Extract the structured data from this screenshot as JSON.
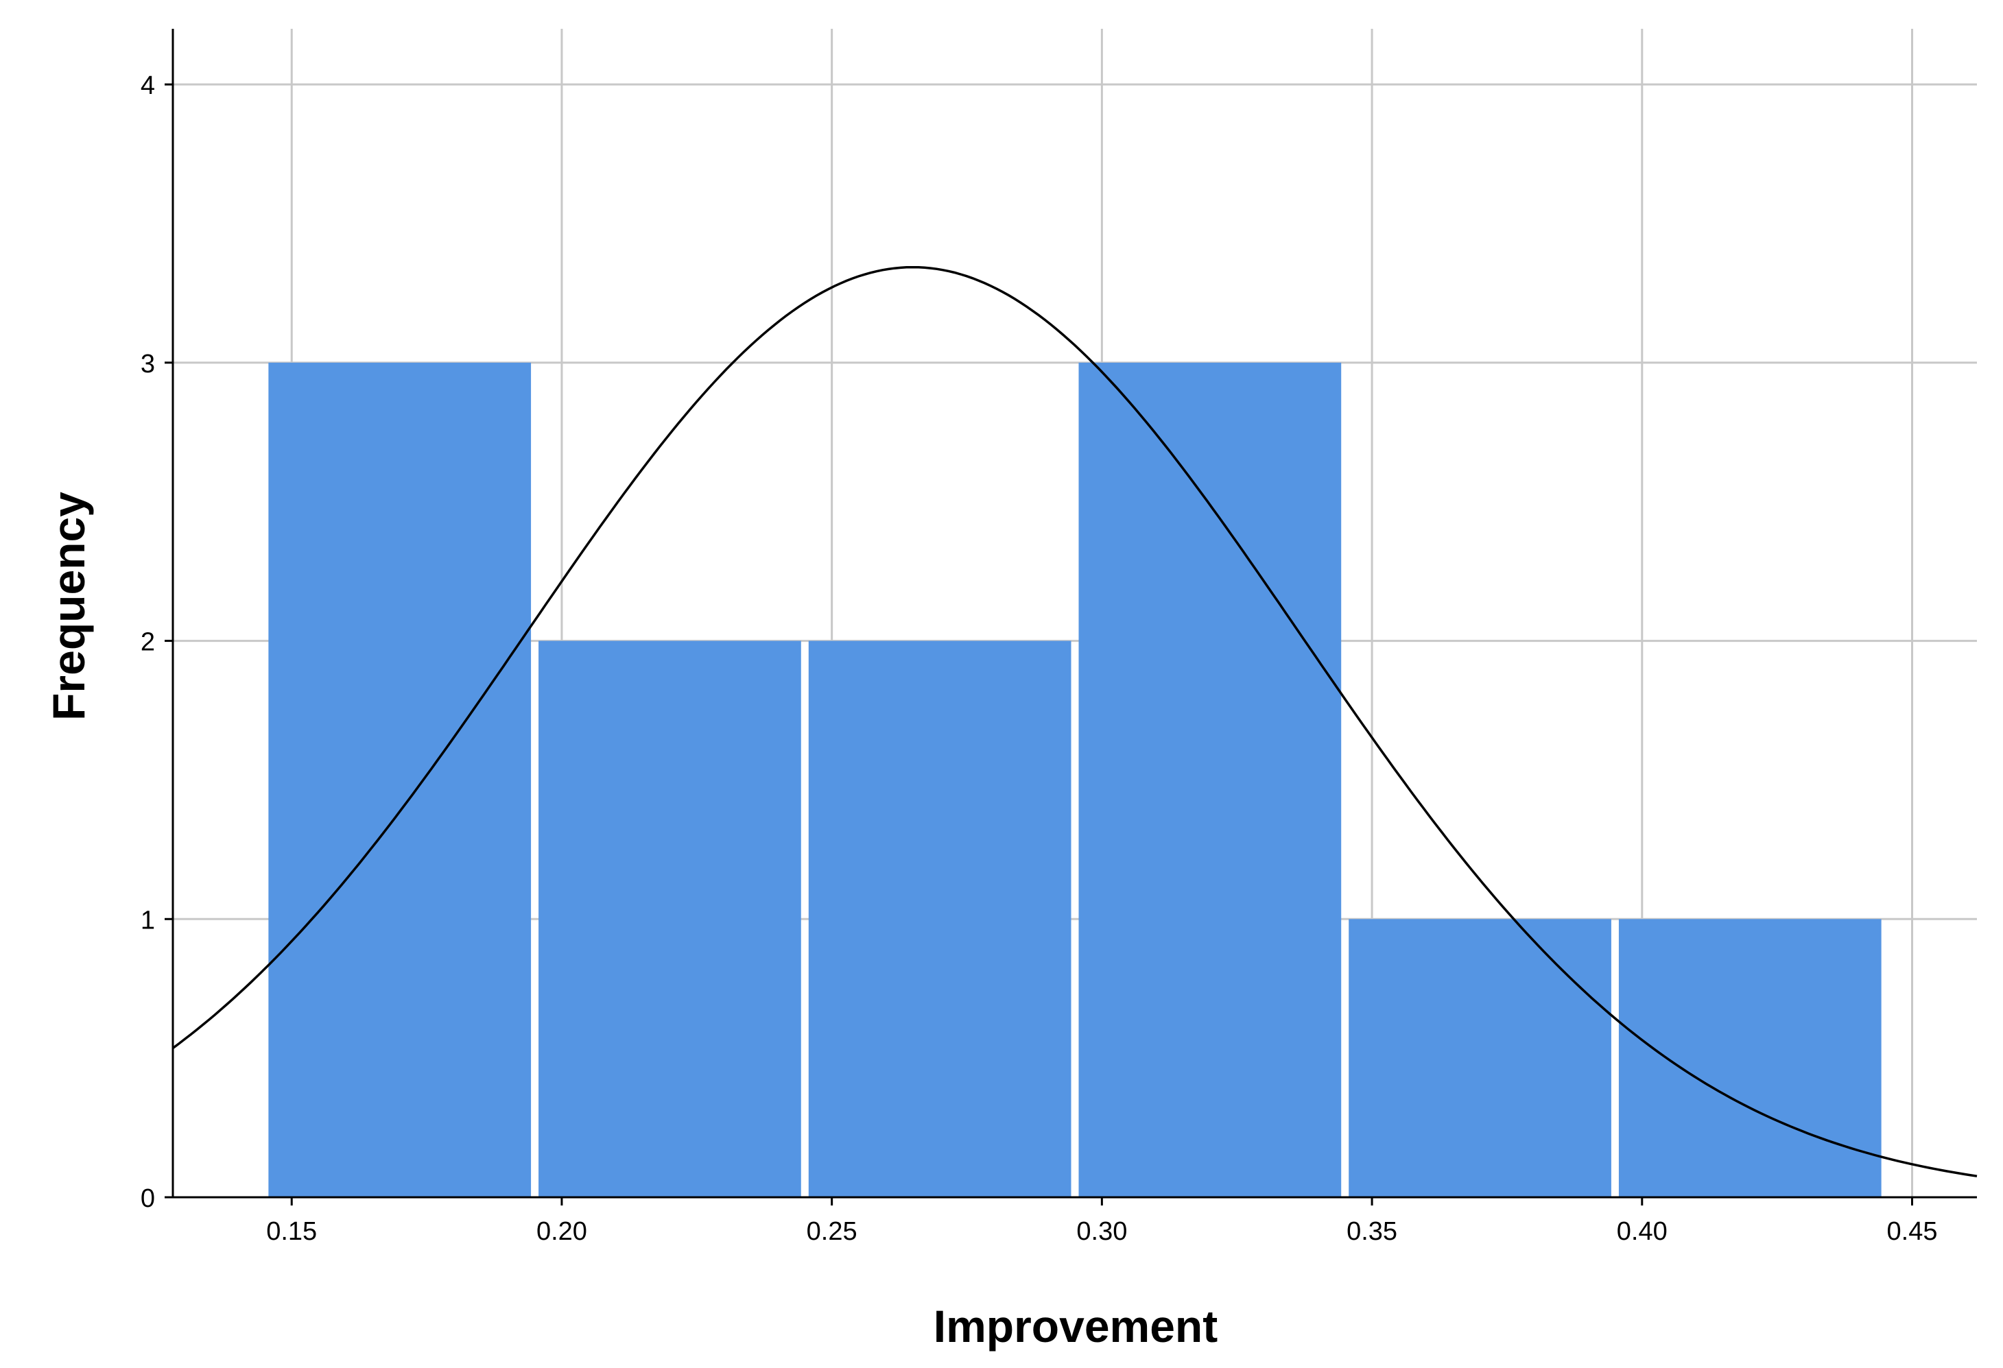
{
  "chart_data": {
    "type": "bar",
    "title": "",
    "xlabel": "Improvement",
    "ylabel": "Frequency",
    "bins": [
      {
        "start": 0.145,
        "end": 0.195,
        "count": 3
      },
      {
        "start": 0.195,
        "end": 0.245,
        "count": 2
      },
      {
        "start": 0.245,
        "end": 0.295,
        "count": 2
      },
      {
        "start": 0.295,
        "end": 0.345,
        "count": 3
      },
      {
        "start": 0.345,
        "end": 0.395,
        "count": 1
      },
      {
        "start": 0.395,
        "end": 0.445,
        "count": 1
      }
    ],
    "xlim": [
      0.128,
      0.462
    ],
    "ylim": [
      0,
      4.2
    ],
    "x_ticks": [
      "0.15",
      "0.20",
      "0.25",
      "0.30",
      "0.35",
      "0.40",
      "0.45"
    ],
    "y_ticks": [
      "0",
      "1",
      "2",
      "3",
      "4"
    ],
    "normal_curve": {
      "mean": 0.265,
      "std_dev": 0.0716,
      "n": 12,
      "bin_width": 0.05
    },
    "grid": true,
    "colors": {
      "bar": "#5595E3",
      "grid": "#C8C8C8",
      "curve": "#000000",
      "axis": "#000000"
    }
  }
}
